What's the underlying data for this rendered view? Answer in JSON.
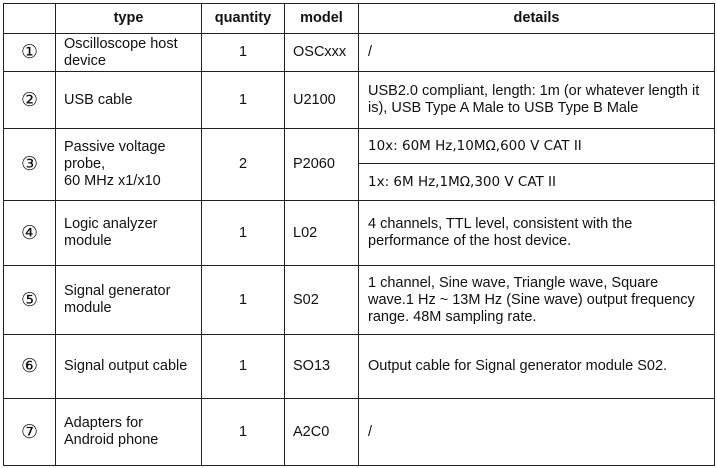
{
  "headers": {
    "index": "",
    "type": "type",
    "quantity": "quantity",
    "model": "model",
    "details": "details"
  },
  "rows": [
    {
      "index": "①",
      "type": "Oscilloscope host device",
      "quantity": "1",
      "model": "OSCxxx",
      "details": "/"
    },
    {
      "index": "②",
      "type": "USB cable",
      "quantity": "1",
      "model": "U2100",
      "details": "USB2.0 compliant, length: 1m (or whatever length it is), USB Type A Male to USB Type B Male"
    },
    {
      "index": "③",
      "type_lines": [
        "Passive voltage probe,",
        "60 MHz x1/x10"
      ],
      "quantity": "2",
      "model": "P2060",
      "details": [
        "10x: 60M Hz,10MΩ,600  V CAT II",
        "1x: 6M Hz,1MΩ,300  V CAT II"
      ]
    },
    {
      "index": "④",
      "type": "Logic analyzer module",
      "quantity": "1",
      "model": "L02",
      "details": "4 channels, TTL level, consistent with the performance of the host device."
    },
    {
      "index": "⑤",
      "type": "Signal generator module",
      "quantity": "1",
      "model": "S02",
      "details": "1 channel, Sine wave, Triangle wave, Square wave.1 Hz ~ 13M Hz (Sine wave) output frequency range. 48M sampling rate."
    },
    {
      "index": "⑥",
      "type": "Signal output cable",
      "quantity": "1",
      "model": "SO13",
      "details": "Output cable for Signal generator module S02."
    },
    {
      "index": "⑦",
      "type": "Adapters for Android phone",
      "quantity": "1",
      "model": "A2C0",
      "details": "/"
    }
  ]
}
